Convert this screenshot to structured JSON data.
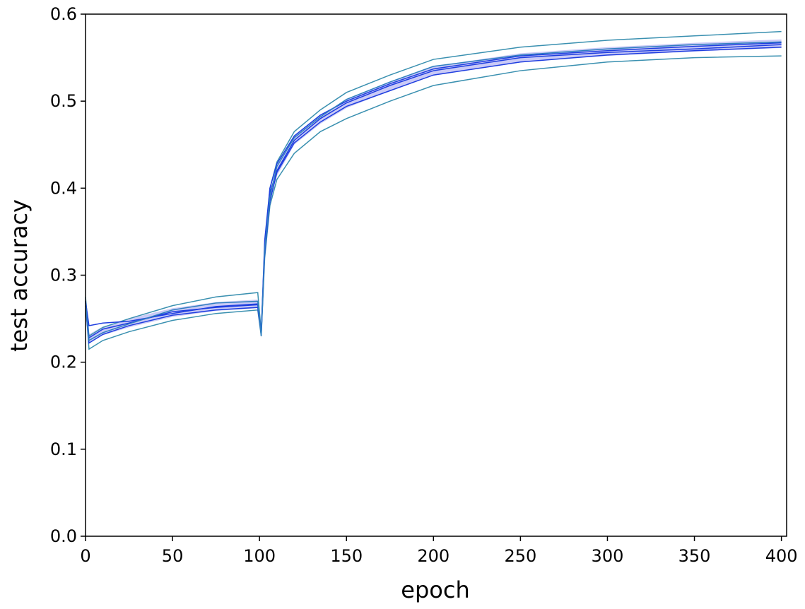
{
  "chart_data": {
    "type": "line",
    "xlabel": "epoch",
    "ylabel": "test accuracy",
    "x": [
      0,
      2,
      10,
      25,
      50,
      75,
      99,
      101,
      103,
      106,
      110,
      120,
      135,
      150,
      175,
      200,
      250,
      300,
      350,
      400
    ],
    "series": [
      {
        "color": "#3a90b0",
        "values": [
          0.275,
          0.23,
          0.24,
          0.25,
          0.265,
          0.275,
          0.28,
          0.235,
          0.33,
          0.4,
          0.43,
          0.465,
          0.49,
          0.51,
          0.53,
          0.548,
          0.562,
          0.57,
          0.575,
          0.58
        ]
      },
      {
        "color": "#3a90b0",
        "values": [
          0.27,
          0.215,
          0.225,
          0.235,
          0.248,
          0.256,
          0.26,
          0.23,
          0.32,
          0.38,
          0.41,
          0.44,
          0.465,
          0.48,
          0.5,
          0.518,
          0.535,
          0.545,
          0.55,
          0.552
        ]
      },
      {
        "color": "#1f3ee0",
        "values": [
          0.27,
          0.228,
          0.238,
          0.245,
          0.258,
          0.263,
          0.266,
          0.232,
          0.335,
          0.395,
          0.42,
          0.455,
          0.48,
          0.498,
          0.518,
          0.535,
          0.55,
          0.556,
          0.56,
          0.565
        ]
      },
      {
        "color": "#1f3ee0",
        "values": [
          0.265,
          0.222,
          0.232,
          0.242,
          0.254,
          0.26,
          0.263,
          0.233,
          0.325,
          0.385,
          0.418,
          0.452,
          0.476,
          0.494,
          0.512,
          0.53,
          0.545,
          0.553,
          0.558,
          0.562
        ]
      },
      {
        "color": "#1f3ee0",
        "values": [
          0.27,
          0.242,
          0.245,
          0.247,
          0.256,
          0.264,
          0.267,
          0.234,
          0.34,
          0.4,
          0.428,
          0.46,
          0.484,
          0.5,
          0.52,
          0.537,
          0.552,
          0.558,
          0.563,
          0.567
        ]
      },
      {
        "color": "#2f7fc0",
        "values": [
          0.268,
          0.225,
          0.234,
          0.244,
          0.26,
          0.268,
          0.27,
          0.23,
          0.33,
          0.39,
          0.425,
          0.458,
          0.482,
          0.502,
          0.522,
          0.54,
          0.553,
          0.56,
          0.565,
          0.568
        ]
      }
    ],
    "band": {
      "color": "#b4b4f2",
      "lower": [
        0.263,
        0.222,
        0.231,
        0.24,
        0.252,
        0.259,
        0.262,
        0.228,
        0.324,
        0.385,
        0.414,
        0.45,
        0.474,
        0.492,
        0.512,
        0.53,
        0.545,
        0.552,
        0.557,
        0.561
      ],
      "upper": [
        0.273,
        0.232,
        0.241,
        0.25,
        0.262,
        0.269,
        0.272,
        0.238,
        0.334,
        0.395,
        0.424,
        0.46,
        0.484,
        0.502,
        0.522,
        0.54,
        0.555,
        0.562,
        0.567,
        0.571
      ]
    },
    "xlim": [
      0,
      403
    ],
    "ylim": [
      0,
      0.6
    ],
    "xticks": [
      0,
      50,
      100,
      150,
      200,
      250,
      300,
      350,
      400
    ],
    "yticks": [
      {
        "value": 0,
        "label": "0.0"
      },
      0.1,
      0.2,
      0.3,
      0.4,
      0.5,
      0.6
    ]
  }
}
